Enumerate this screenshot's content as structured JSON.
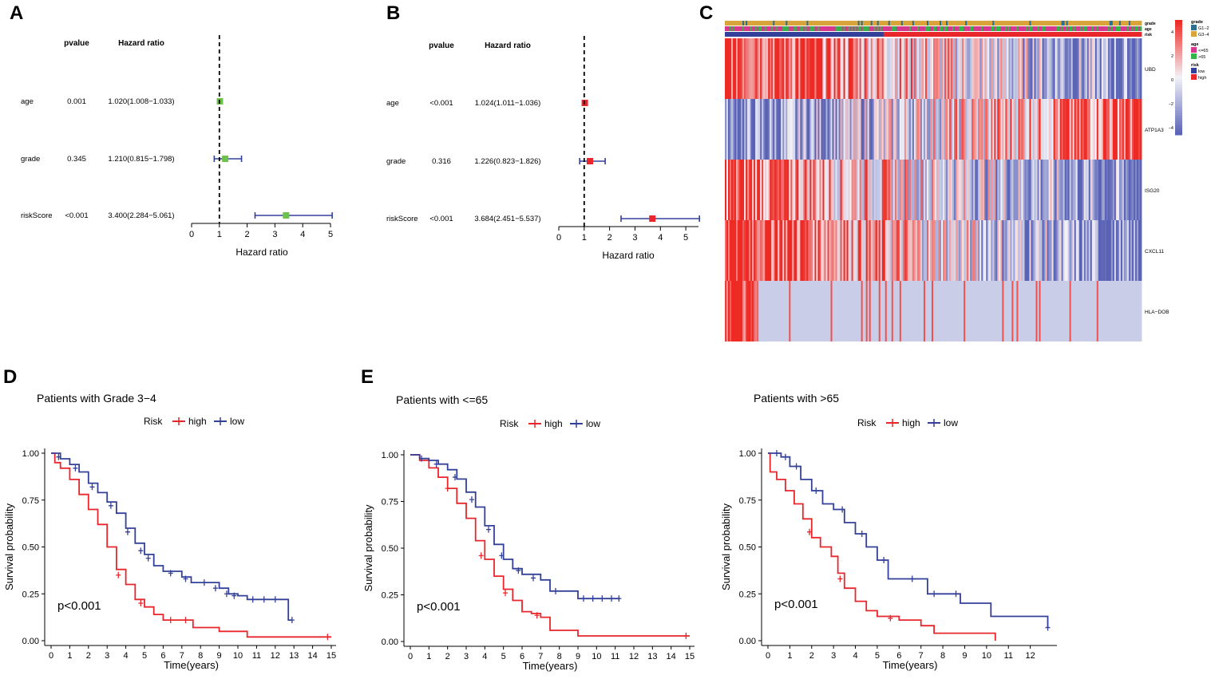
{
  "figure": {
    "panel_labels": [
      "A",
      "B",
      "C",
      "D",
      "E"
    ]
  },
  "colors": {
    "high": "#e8262b",
    "low": "#33409a",
    "green_marker": "#6cc24a",
    "red_marker": "#e8262b",
    "ci_line": "#33409a",
    "heat_red": "#ee2a24",
    "heat_white": "#f2f2f8",
    "heat_blue": "#5a63b5",
    "heat_lavender": "#c9cde8",
    "grade_g12": "#2e6f8e",
    "grade_g34": "#d9a43a",
    "age_le65": "#d6388f",
    "age_gt65": "#36b24b"
  },
  "chart_data": [
    {
      "id": "A",
      "type": "forest",
      "headers": {
        "pvalue": "pvalue",
        "hr": "Hazard ratio"
      },
      "rows": [
        {
          "label": "age",
          "pvalue": "0.001",
          "hr_text": "1.020(1.008−1.033)",
          "hr": 1.02,
          "lo": 1.008,
          "hi": 1.033
        },
        {
          "label": "grade",
          "pvalue": "0.345",
          "hr_text": "1.210(0.815−1.798)",
          "hr": 1.21,
          "lo": 0.815,
          "hi": 1.798
        },
        {
          "label": "riskScore",
          "pvalue": "<0.001",
          "hr_text": "3.400(2.284−5.061)",
          "hr": 3.4,
          "lo": 2.284,
          "hi": 5.061
        }
      ],
      "xlim": [
        0,
        5
      ],
      "ticks": [
        "0",
        "1",
        "2",
        "3",
        "4",
        "5"
      ],
      "ref_line": 1,
      "xlabel": "Hazard ratio",
      "marker": "green"
    },
    {
      "id": "B",
      "type": "forest",
      "headers": {
        "pvalue": "pvalue",
        "hr": "Hazard ratio"
      },
      "rows": [
        {
          "label": "age",
          "pvalue": "<0.001",
          "hr_text": "1.024(1.011−1.036)",
          "hr": 1.024,
          "lo": 1.011,
          "hi": 1.036
        },
        {
          "label": "grade",
          "pvalue": "0.316",
          "hr_text": "1.226(0.823−1.826)",
          "hr": 1.226,
          "lo": 0.823,
          "hi": 1.826
        },
        {
          "label": "riskScore",
          "pvalue": "<0.001",
          "hr_text": "3.684(2.451−5.537)",
          "hr": 3.684,
          "lo": 2.451,
          "hi": 5.537
        }
      ],
      "xlim": [
        0,
        5.5
      ],
      "ticks": [
        "0",
        "1",
        "2",
        "3",
        "4",
        "5"
      ],
      "ref_line": 1,
      "xlabel": "Hazard ratio",
      "marker": "red"
    },
    {
      "id": "C",
      "type": "heatmap",
      "annotation_tracks": [
        "grade",
        "age",
        "risk"
      ],
      "genes": [
        "UBD",
        "ATP1A3",
        "ISG20",
        "CXCL11",
        "HLA−DOB"
      ],
      "n_samples": 260,
      "risk_split_fraction": 0.38,
      "value_range": [
        -4,
        4
      ],
      "legend_ticks": [
        "4",
        "2",
        "0",
        "−2",
        "−4"
      ],
      "legend": {
        "grade": {
          "title": "grade",
          "items": [
            "G1−2",
            "G3−4"
          ]
        },
        "age": {
          "title": "age",
          "items": [
            "<=65",
            ">65"
          ]
        },
        "risk": {
          "title": "risk",
          "items": [
            "low",
            "high"
          ]
        }
      }
    },
    {
      "id": "D",
      "type": "survival",
      "title": "Patients with Grade 3−4",
      "legend_title": "Risk",
      "legend_items": [
        "high",
        "low"
      ],
      "pvalue": "p<0.001",
      "xlabel": "Time(years)",
      "ylabel": "Survival probability",
      "xlim": [
        0,
        15
      ],
      "ylim": [
        0,
        1
      ],
      "xticks": [
        "0",
        "1",
        "2",
        "3",
        "4",
        "5",
        "6",
        "7",
        "8",
        "9",
        "10",
        "11",
        "12",
        "13",
        "14",
        "15"
      ],
      "yticks": [
        "0.00",
        "0.25",
        "0.50",
        "0.75",
        "1.00"
      ],
      "series": [
        {
          "name": "high",
          "points": [
            [
              0,
              1
            ],
            [
              0.2,
              0.95
            ],
            [
              0.5,
              0.92
            ],
            [
              1,
              0.86
            ],
            [
              1.5,
              0.78
            ],
            [
              2,
              0.7
            ],
            [
              2.5,
              0.62
            ],
            [
              3,
              0.5
            ],
            [
              3.5,
              0.38
            ],
            [
              4,
              0.3
            ],
            [
              4.5,
              0.22
            ],
            [
              5,
              0.18
            ],
            [
              5.5,
              0.14
            ],
            [
              6,
              0.11
            ],
            [
              7,
              0.11
            ],
            [
              7.6,
              0.07
            ],
            [
              8,
              0.07
            ],
            [
              9,
              0.05
            ],
            [
              10.5,
              0.02
            ],
            [
              15,
              0.02
            ]
          ],
          "censors": [
            [
              3.6,
              0.35
            ],
            [
              4.8,
              0.2
            ],
            [
              6.4,
              0.11
            ],
            [
              7.2,
              0.11
            ],
            [
              14.8,
              0.02
            ]
          ]
        },
        {
          "name": "low",
          "points": [
            [
              0,
              1
            ],
            [
              0.5,
              0.97
            ],
            [
              1,
              0.94
            ],
            [
              1.5,
              0.9
            ],
            [
              2,
              0.84
            ],
            [
              2.5,
              0.79
            ],
            [
              3,
              0.74
            ],
            [
              3.5,
              0.68
            ],
            [
              4,
              0.6
            ],
            [
              4.5,
              0.52
            ],
            [
              5,
              0.46
            ],
            [
              5.5,
              0.4
            ],
            [
              6,
              0.37
            ],
            [
              7,
              0.34
            ],
            [
              7.5,
              0.31
            ],
            [
              8,
              0.31
            ],
            [
              9,
              0.28
            ],
            [
              9.5,
              0.25
            ],
            [
              10,
              0.24
            ],
            [
              10.5,
              0.22
            ],
            [
              12.7,
              0.22
            ],
            [
              12.7,
              0.11
            ],
            [
              12.9,
              0.11
            ]
          ],
          "censors": [
            [
              0.4,
              0.98
            ],
            [
              1.3,
              0.92
            ],
            [
              2.2,
              0.82
            ],
            [
              3.2,
              0.72
            ],
            [
              4.1,
              0.58
            ],
            [
              4.8,
              0.48
            ],
            [
              5.2,
              0.44
            ],
            [
              6.4,
              0.36
            ],
            [
              7.2,
              0.33
            ],
            [
              8.2,
              0.31
            ],
            [
              8.8,
              0.28
            ],
            [
              9.4,
              0.25
            ],
            [
              9.8,
              0.24
            ],
            [
              10.8,
              0.22
            ],
            [
              11.4,
              0.22
            ],
            [
              12.0,
              0.22
            ],
            [
              12.9,
              0.11
            ]
          ]
        }
      ]
    },
    {
      "id": "E1",
      "type": "survival",
      "title": "Patients with <=65",
      "legend_title": "Risk",
      "legend_items": [
        "high",
        "low"
      ],
      "pvalue": "p<0.001",
      "xlabel": "Time(years)",
      "ylabel": "Survival probability",
      "xlim": [
        0,
        15
      ],
      "ylim": [
        0,
        1
      ],
      "xticks": [
        "0",
        "1",
        "2",
        "3",
        "4",
        "5",
        "6",
        "7",
        "8",
        "9",
        "10",
        "11",
        "12",
        "13",
        "14",
        "15"
      ],
      "yticks": [
        "0.00",
        "0.25",
        "0.50",
        "0.75",
        "1.00"
      ],
      "series": [
        {
          "name": "high",
          "points": [
            [
              0,
              1
            ],
            [
              0.5,
              0.97
            ],
            [
              1,
              0.93
            ],
            [
              1.5,
              0.88
            ],
            [
              2,
              0.82
            ],
            [
              2.5,
              0.74
            ],
            [
              3,
              0.66
            ],
            [
              3.5,
              0.54
            ],
            [
              4,
              0.44
            ],
            [
              4.5,
              0.35
            ],
            [
              5,
              0.28
            ],
            [
              5.5,
              0.22
            ],
            [
              6,
              0.16
            ],
            [
              6.5,
              0.15
            ],
            [
              7,
              0.13
            ],
            [
              7.5,
              0.06
            ],
            [
              9,
              0.03
            ],
            [
              15,
              0.03
            ]
          ],
          "censors": [
            [
              2.0,
              0.82
            ],
            [
              3.8,
              0.46
            ],
            [
              5.1,
              0.26
            ],
            [
              6.8,
              0.14
            ],
            [
              14.8,
              0.03
            ]
          ]
        },
        {
          "name": "low",
          "points": [
            [
              0,
              1
            ],
            [
              0.5,
              0.98
            ],
            [
              1,
              0.97
            ],
            [
              1.5,
              0.95
            ],
            [
              2,
              0.92
            ],
            [
              2.5,
              0.87
            ],
            [
              3,
              0.8
            ],
            [
              3.5,
              0.72
            ],
            [
              4,
              0.62
            ],
            [
              4.5,
              0.52
            ],
            [
              5,
              0.44
            ],
            [
              5.5,
              0.39
            ],
            [
              6,
              0.36
            ],
            [
              7,
              0.33
            ],
            [
              7.5,
              0.27
            ],
            [
              8,
              0.27
            ],
            [
              9,
              0.23
            ],
            [
              11.2,
              0.23
            ]
          ],
          "censors": [
            [
              0.6,
              0.98
            ],
            [
              1.4,
              0.95
            ],
            [
              2.4,
              0.88
            ],
            [
              3.3,
              0.76
            ],
            [
              4.2,
              0.6
            ],
            [
              4.9,
              0.46
            ],
            [
              5.8,
              0.38
            ],
            [
              6.6,
              0.34
            ],
            [
              7.8,
              0.27
            ],
            [
              9.3,
              0.23
            ],
            [
              9.8,
              0.23
            ],
            [
              10.3,
              0.23
            ],
            [
              10.8,
              0.23
            ],
            [
              11.2,
              0.23
            ]
          ]
        }
      ]
    },
    {
      "id": "E2",
      "type": "survival",
      "title": "Patients with >65",
      "legend_title": "Risk",
      "legend_items": [
        "high",
        "low"
      ],
      "pvalue": "p<0.001",
      "xlabel": "Time(years)",
      "ylabel": "Survival probability",
      "xlim": [
        0,
        13
      ],
      "ylim": [
        0,
        1
      ],
      "xticks": [
        "0",
        "1",
        "2",
        "3",
        "4",
        "5",
        "6",
        "7",
        "8",
        "9",
        "10",
        "11",
        "12"
      ],
      "yticks": [
        "0.00",
        "0.25",
        "0.50",
        "0.75",
        "1.00"
      ],
      "series": [
        {
          "name": "high",
          "points": [
            [
              0,
              1
            ],
            [
              0.1,
              0.9
            ],
            [
              0.4,
              0.86
            ],
            [
              0.8,
              0.8
            ],
            [
              1.2,
              0.73
            ],
            [
              1.6,
              0.65
            ],
            [
              2,
              0.55
            ],
            [
              2.4,
              0.5
            ],
            [
              2.9,
              0.45
            ],
            [
              3.2,
              0.36
            ],
            [
              3.5,
              0.28
            ],
            [
              4,
              0.21
            ],
            [
              4.5,
              0.16
            ],
            [
              5,
              0.13
            ],
            [
              6,
              0.11
            ],
            [
              7,
              0.08
            ],
            [
              7.6,
              0.04
            ],
            [
              10.4,
              0.04
            ],
            [
              10.4,
              0.0
            ]
          ],
          "censors": [
            [
              1.9,
              0.58
            ],
            [
              3.3,
              0.33
            ],
            [
              5.6,
              0.12
            ]
          ]
        },
        {
          "name": "low",
          "points": [
            [
              0,
              1
            ],
            [
              0.6,
              0.98
            ],
            [
              1,
              0.93
            ],
            [
              1.5,
              0.86
            ],
            [
              2,
              0.8
            ],
            [
              2.5,
              0.73
            ],
            [
              3,
              0.7
            ],
            [
              3.5,
              0.63
            ],
            [
              4,
              0.57
            ],
            [
              4.5,
              0.5
            ],
            [
              5,
              0.43
            ],
            [
              5.5,
              0.33
            ],
            [
              7,
              0.33
            ],
            [
              7.3,
              0.25
            ],
            [
              8.5,
              0.25
            ],
            [
              8.8,
              0.2
            ],
            [
              10,
              0.2
            ],
            [
              10.2,
              0.13
            ],
            [
              12.6,
              0.13
            ],
            [
              12.8,
              0.07
            ]
          ],
          "censors": [
            [
              0.4,
              1.0
            ],
            [
              0.8,
              0.98
            ],
            [
              1.3,
              0.93
            ],
            [
              2.2,
              0.8
            ],
            [
              3.4,
              0.7
            ],
            [
              4.3,
              0.57
            ],
            [
              5.3,
              0.43
            ],
            [
              6.6,
              0.33
            ],
            [
              7.6,
              0.25
            ],
            [
              8.6,
              0.25
            ],
            [
              12.8,
              0.07
            ]
          ]
        }
      ]
    }
  ]
}
